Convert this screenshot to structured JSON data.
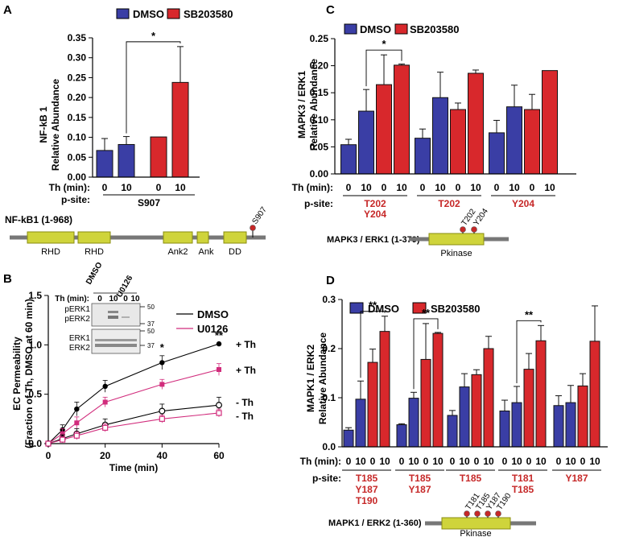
{
  "colors": {
    "dmso_bar": "#3a3ea5",
    "sb_bar": "#d8282c",
    "ptm": "#c62828",
    "domain_fill": "#cfd43b",
    "domain_stroke": "#8a8c10",
    "line_grey": "#777777",
    "u0126": "#d12c7c",
    "black": "#000000"
  },
  "legend": {
    "dmso": "DMSO",
    "sb": "SB203580"
  },
  "th_label": "Th (min):",
  "psite_label": "p-site:",
  "chart_data": [
    {
      "id": "A",
      "panel_letter": "A",
      "type": "bar",
      "ylabel_line1": "NF-kB 1",
      "ylabel_line2": "Relative Abundance",
      "ylim": [
        0,
        0.35
      ],
      "ytick_labels": [
        "0.00",
        "0.05",
        "0.10",
        "0.15",
        "0.20",
        "0.25",
        "0.30",
        "0.35"
      ],
      "groups": [
        {
          "label": "S907",
          "sites": [
            "S907"
          ]
        }
      ],
      "bars": [
        {
          "treatment": "DMSO",
          "th": "0",
          "value": 0.067,
          "err": 0.03
        },
        {
          "treatment": "DMSO",
          "th": "10",
          "value": 0.082,
          "err": 0.02
        },
        {
          "treatment": "SB203580",
          "th": "0",
          "value": 0.101,
          "err": 0.0
        },
        {
          "treatment": "SB203580",
          "th": "10",
          "value": 0.238,
          "err": 0.09
        }
      ],
      "significance": [
        {
          "from": 1,
          "to": 3,
          "label": "*"
        }
      ],
      "protein": {
        "name": "NF-kB1 (1-968)",
        "domains": [
          "RHD",
          "RHD",
          "Ank2",
          "Ank",
          "DD"
        ],
        "ptm_sites": [
          "S907"
        ]
      }
    },
    {
      "id": "C",
      "panel_letter": "C",
      "type": "bar",
      "ylabel_line1": "MAPK3 / ERK1",
      "ylabel_line2": "Relative Abundance",
      "ylim": [
        0,
        0.25
      ],
      "ytick_labels": [
        "0.00",
        "0.05",
        "0.10",
        "0.15",
        "0.20",
        "0.25"
      ],
      "groups": [
        {
          "label": "T202 Y204",
          "sites": [
            "T202",
            "Y204"
          ],
          "bars": [
            {
              "treatment": "DMSO",
              "th": "0",
              "value": 0.054,
              "err": 0.01
            },
            {
              "treatment": "DMSO",
              "th": "10",
              "value": 0.116,
              "err": 0.04
            },
            {
              "treatment": "SB203580",
              "th": "0",
              "value": 0.165,
              "err": 0.055
            },
            {
              "treatment": "SB203580",
              "th": "10",
              "value": 0.201,
              "err": 0.002
            }
          ]
        },
        {
          "label": "T202",
          "sites": [
            "T202"
          ],
          "bars": [
            {
              "treatment": "DMSO",
              "th": "0",
              "value": 0.066,
              "err": 0.017
            },
            {
              "treatment": "DMSO",
              "th": "10",
              "value": 0.141,
              "err": 0.047
            },
            {
              "treatment": "SB203580",
              "th": "0",
              "value": 0.119,
              "err": 0.012
            },
            {
              "treatment": "SB203580",
              "th": "10",
              "value": 0.186,
              "err": 0.006
            }
          ]
        },
        {
          "label": "Y204",
          "sites": [
            "Y204"
          ],
          "bars": [
            {
              "treatment": "DMSO",
              "th": "0",
              "value": 0.076,
              "err": 0.023
            },
            {
              "treatment": "DMSO",
              "th": "10",
              "value": 0.124,
              "err": 0.04
            },
            {
              "treatment": "SB203580",
              "th": "0",
              "value": 0.119,
              "err": 0.028
            },
            {
              "treatment": "SB203580",
              "th": "10",
              "value": 0.191,
              "err": 0.0
            }
          ]
        }
      ],
      "significance": [
        {
          "group": 0,
          "from": 1,
          "to": 3,
          "label": "*"
        }
      ],
      "protein": {
        "name": "MAPK3 / ERK1 (1-379)",
        "domains": [
          "Pkinase"
        ],
        "ptm_sites": [
          "T202",
          "Y204"
        ]
      }
    },
    {
      "id": "B",
      "panel_letter": "B",
      "type": "line",
      "ylabel_line1": "EC Permeability",
      "ylabel_line2": "(Fraction of Th, DMSO at 60 min)",
      "xlabel": "Time (min)",
      "xlim": [
        0,
        60
      ],
      "ylim": [
        0,
        1.5
      ],
      "xticks": [
        0,
        20,
        40,
        60
      ],
      "xtick_labels": [
        "0",
        "20",
        "40",
        "60"
      ],
      "yticks": [
        0,
        0.5,
        1.0,
        1.5
      ],
      "ytick_labels": [
        "0.0",
        "0.5",
        "1.0",
        "1.5"
      ],
      "legend": [
        "DMSO",
        "U0126"
      ],
      "series": [
        {
          "name": "DMSO + Th",
          "treatment": "DMSO",
          "th": true,
          "label": "+ Th",
          "x": [
            0,
            5,
            10,
            20,
            40,
            60
          ],
          "y": [
            0,
            0.14,
            0.35,
            0.58,
            0.82,
            1.01
          ],
          "err": [
            0.02,
            0.05,
            0.07,
            0.06,
            0.07,
            0.0
          ]
        },
        {
          "name": "U0126 + Th",
          "treatment": "U0126",
          "th": true,
          "label": "+ Th",
          "x": [
            0,
            5,
            10,
            20,
            40,
            60
          ],
          "y": [
            0,
            0.1,
            0.21,
            0.42,
            0.6,
            0.75
          ],
          "err": [
            0.02,
            0.05,
            0.06,
            0.05,
            0.05,
            0.06
          ]
        },
        {
          "name": "DMSO - Th",
          "treatment": "DMSO",
          "th": false,
          "label": "- Th",
          "x": [
            0,
            5,
            10,
            20,
            40,
            60
          ],
          "y": [
            0,
            0.05,
            0.1,
            0.19,
            0.33,
            0.39
          ],
          "err": [
            0.02,
            0.04,
            0.05,
            0.06,
            0.07,
            0.08
          ]
        },
        {
          "name": "U0126 - Th",
          "treatment": "U0126",
          "th": false,
          "label": "- Th",
          "x": [
            0,
            5,
            10,
            20,
            40,
            60
          ],
          "y": [
            0,
            0.04,
            0.08,
            0.16,
            0.25,
            0.31
          ],
          "err": [
            0.02,
            0.03,
            0.04,
            0.04,
            0.04,
            0.04
          ]
        }
      ],
      "significance": [
        {
          "x": 40,
          "label": "*"
        },
        {
          "x": 60,
          "label": "**"
        }
      ],
      "blot": {
        "header_label": "Th (min):",
        "lane_groups": [
          "DMSO",
          "U0126"
        ],
        "lanes": [
          "0",
          "10",
          "0",
          "10"
        ],
        "top_band_labels": [
          "pERK1",
          "pERK2"
        ],
        "bottom_band_labels": [
          "ERK1",
          "ERK2"
        ],
        "markers_top": [
          "50",
          "37"
        ],
        "markers_bottom": [
          "50",
          "37"
        ]
      }
    },
    {
      "id": "D",
      "panel_letter": "D",
      "type": "bar",
      "ylabel_line1": "MAPK1 / ERK2",
      "ylabel_line2": "Relative Abundance",
      "ylim": [
        0,
        0.3
      ],
      "ytick_labels": [
        "0.0",
        "0.1",
        "0.2",
        "0.3"
      ],
      "groups": [
        {
          "label": "T185 Y187 T190",
          "sites": [
            "T185",
            "Y187",
            "T190"
          ],
          "bars": [
            {
              "treatment": "DMSO",
              "th": "0",
              "value": 0.034,
              "err": 0.005
            },
            {
              "treatment": "DMSO",
              "th": "10",
              "value": 0.097,
              "err": 0.037
            },
            {
              "treatment": "SB203580",
              "th": "0",
              "value": 0.172,
              "err": 0.027
            },
            {
              "treatment": "SB203580",
              "th": "10",
              "value": 0.235,
              "err": 0.031
            }
          ]
        },
        {
          "label": "T185 Y187",
          "sites": [
            "T185",
            "Y187"
          ],
          "bars": [
            {
              "treatment": "DMSO",
              "th": "0",
              "value": 0.045,
              "err": 0.002
            },
            {
              "treatment": "DMSO",
              "th": "10",
              "value": 0.099,
              "err": 0.012
            },
            {
              "treatment": "SB203580",
              "th": "0",
              "value": 0.178,
              "err": 0.073
            },
            {
              "treatment": "SB203580",
              "th": "10",
              "value": 0.231,
              "err": 0.002
            }
          ]
        },
        {
          "label": "T185",
          "sites": [
            "T185"
          ],
          "bars": [
            {
              "treatment": "DMSO",
              "th": "0",
              "value": 0.064,
              "err": 0.01
            },
            {
              "treatment": "DMSO",
              "th": "10",
              "value": 0.122,
              "err": 0.027
            },
            {
              "treatment": "SB203580",
              "th": "0",
              "value": 0.147,
              "err": 0.01
            },
            {
              "treatment": "SB203580",
              "th": "10",
              "value": 0.2,
              "err": 0.025
            }
          ]
        },
        {
          "label": "T181 T185",
          "sites": [
            "T181",
            "T185"
          ],
          "bars": [
            {
              "treatment": "DMSO",
              "th": "0",
              "value": 0.073,
              "err": 0.022
            },
            {
              "treatment": "DMSO",
              "th": "10",
              "value": 0.09,
              "err": 0.033
            },
            {
              "treatment": "SB203580",
              "th": "0",
              "value": 0.158,
              "err": 0.032
            },
            {
              "treatment": "SB203580",
              "th": "10",
              "value": 0.216,
              "err": 0.031
            }
          ]
        },
        {
          "label": "Y187",
          "sites": [
            "Y187"
          ],
          "bars": [
            {
              "treatment": "DMSO",
              "th": "0",
              "value": 0.084,
              "err": 0.02
            },
            {
              "treatment": "DMSO",
              "th": "10",
              "value": 0.09,
              "err": 0.035
            },
            {
              "treatment": "SB203580",
              "th": "0",
              "value": 0.124,
              "err": 0.025
            },
            {
              "treatment": "SB203580",
              "th": "10",
              "value": 0.215,
              "err": 0.072
            }
          ]
        }
      ],
      "significance": [
        {
          "group": 0,
          "from": 1,
          "to": 3,
          "label": "**"
        },
        {
          "group": 1,
          "from": 1,
          "to": 3,
          "label": "**"
        },
        {
          "group": 3,
          "from": 1,
          "to": 3,
          "label": "**"
        }
      ],
      "protein": {
        "name": "MAPK1 / ERK2 (1-360)",
        "domains": [
          "Pkinase"
        ],
        "ptm_sites": [
          "T181",
          "T185",
          "Y187",
          "T190"
        ]
      }
    }
  ]
}
